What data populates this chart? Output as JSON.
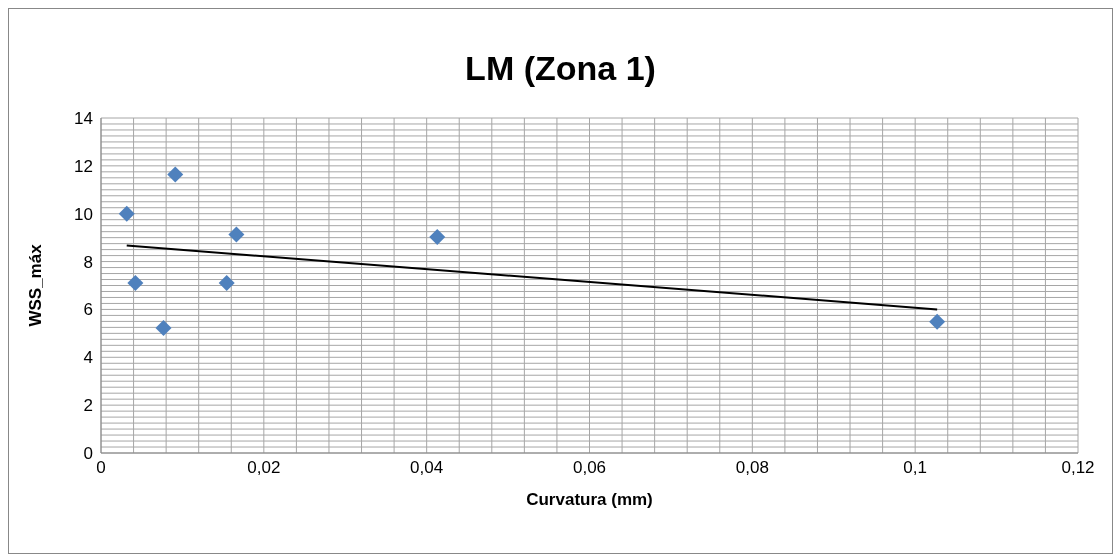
{
  "chart_data": {
    "type": "scatter",
    "title": "LM (Zona 1)",
    "xlabel": "Curvatura (mm)",
    "ylabel": "WSS_máx",
    "series": [
      {
        "type": "scatter",
        "color": "#4f81bd",
        "marker": "diamond",
        "x": [
          0.00316,
          0.00422,
          0.00768,
          0.00912,
          0.01544,
          0.01663,
          0.0413,
          0.1027
        ],
        "values": [
          10.0,
          7.1,
          5.22,
          11.64,
          7.1,
          9.13,
          9.03,
          5.49
        ]
      },
      {
        "type": "line",
        "color": "#000000",
        "marker": "none",
        "x": [
          0.00316,
          0.1027
        ],
        "values": [
          8.67,
          6.0
        ]
      }
    ],
    "xlim": [
      0,
      0.12
    ],
    "xticks": [
      0,
      {
        "value": 0.004,
        "label": null
      },
      {
        "value": 0.008,
        "label": null
      },
      {
        "value": 0.012,
        "label": null
      },
      {
        "value": 0.016,
        "label": null
      },
      {
        "value": 0.02,
        "label": "0,02"
      },
      {
        "value": 0.024,
        "label": null
      },
      {
        "value": 0.028,
        "label": null
      },
      {
        "value": 0.032,
        "label": null
      },
      {
        "value": 0.036,
        "label": null
      },
      {
        "value": 0.04,
        "label": "0,04"
      },
      {
        "value": 0.044,
        "label": null
      },
      {
        "value": 0.048,
        "label": null
      },
      {
        "value": 0.052,
        "label": null
      },
      {
        "value": 0.056,
        "label": null
      },
      {
        "value": 0.06,
        "label": "0,06"
      },
      {
        "value": 0.064,
        "label": null
      },
      {
        "value": 0.068,
        "label": null
      },
      {
        "value": 0.072,
        "label": null
      },
      {
        "value": 0.076,
        "label": null
      },
      {
        "value": 0.08,
        "label": "0,08"
      },
      {
        "value": 0.084,
        "label": null
      },
      {
        "value": 0.088,
        "label": null
      },
      {
        "value": 0.092,
        "label": null
      },
      {
        "value": 0.096,
        "label": null
      },
      {
        "value": 0.1,
        "label": "0,1"
      },
      {
        "value": 0.104,
        "label": null
      },
      {
        "value": 0.108,
        "label": null
      },
      {
        "value": 0.112,
        "label": null
      },
      {
        "value": 0.116,
        "label": null
      },
      {
        "value": 0.12,
        "label": "0,12"
      }
    ],
    "ylim": [
      0,
      14
    ],
    "yticks": [
      0,
      {
        "value": 0.25,
        "label": null
      },
      {
        "value": 0.5,
        "label": null
      },
      {
        "value": 0.75,
        "label": null
      },
      {
        "value": 1,
        "label": null
      },
      {
        "value": 1.25,
        "label": null
      },
      {
        "value": 1.5,
        "label": null
      },
      {
        "value": 1.75,
        "label": null
      },
      2,
      {
        "value": 2.25,
        "label": null
      },
      {
        "value": 2.5,
        "label": null
      },
      {
        "value": 2.75,
        "label": null
      },
      {
        "value": 3,
        "label": null
      },
      {
        "value": 3.25,
        "label": null
      },
      {
        "value": 3.5,
        "label": null
      },
      {
        "value": 3.75,
        "label": null
      },
      4,
      {
        "value": 4.25,
        "label": null
      },
      {
        "value": 4.5,
        "label": null
      },
      {
        "value": 4.75,
        "label": null
      },
      {
        "value": 5,
        "label": null
      },
      {
        "value": 5.25,
        "label": null
      },
      {
        "value": 5.5,
        "label": null
      },
      {
        "value": 5.75,
        "label": null
      },
      6,
      {
        "value": 6.25,
        "label": null
      },
      {
        "value": 6.5,
        "label": null
      },
      {
        "value": 6.75,
        "label": null
      },
      {
        "value": 7,
        "label": null
      },
      {
        "value": 7.25,
        "label": null
      },
      {
        "value": 7.5,
        "label": null
      },
      {
        "value": 7.75,
        "label": null
      },
      8,
      {
        "value": 8.25,
        "label": null
      },
      {
        "value": 8.5,
        "label": null
      },
      {
        "value": 8.75,
        "label": null
      },
      {
        "value": 9,
        "label": null
      },
      {
        "value": 9.25,
        "label": null
      },
      {
        "value": 9.5,
        "label": null
      },
      {
        "value": 9.75,
        "label": null
      },
      10,
      {
        "value": 10.25,
        "label": null
      },
      {
        "value": 10.5,
        "label": null
      },
      {
        "value": 10.75,
        "label": null
      },
      {
        "value": 11,
        "label": null
      },
      {
        "value": 11.25,
        "label": null
      },
      {
        "value": 11.5,
        "label": null
      },
      {
        "value": 11.75,
        "label": null
      },
      12,
      {
        "value": 12.25,
        "label": null
      },
      {
        "value": 12.5,
        "label": null
      },
      {
        "value": 12.75,
        "label": null
      },
      {
        "value": 13,
        "label": null
      },
      {
        "value": 13.25,
        "label": null
      },
      {
        "value": 13.5,
        "label": null
      },
      {
        "value": 13.75,
        "label": null
      },
      14
    ],
    "grid": true,
    "legend": false
  }
}
